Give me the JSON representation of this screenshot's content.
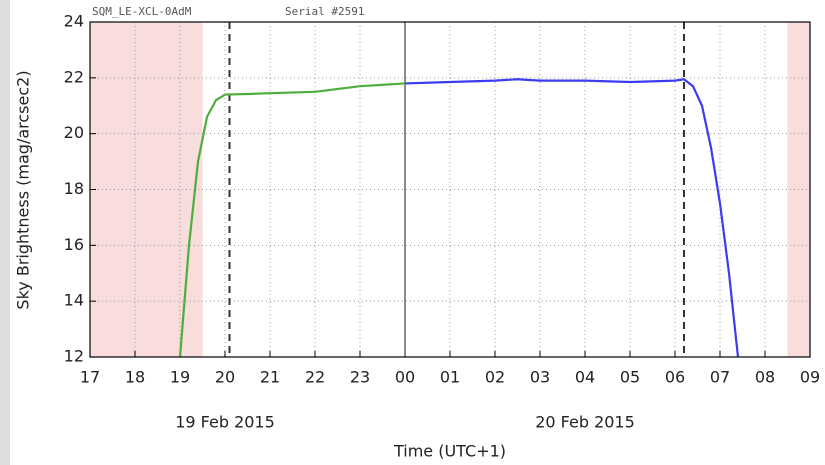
{
  "chart_data": {
    "type": "line",
    "ylabel": "Sky Brightness (mag/arcsec2)",
    "xlabel": "Time (UTC+1)",
    "annotations": [
      "SQM_LE-XCL-0AdM",
      "Serial #2591"
    ],
    "date_labels": [
      "19 Feb 2015",
      "20 Feb 2015"
    ],
    "xlim": [
      17,
      33
    ],
    "ylim": [
      12,
      24
    ],
    "xticks": [
      17,
      18,
      19,
      20,
      21,
      22,
      23,
      {
        "value": 24,
        "label": "00"
      },
      {
        "value": 25,
        "label": "01"
      },
      {
        "value": 26,
        "label": "02"
      },
      {
        "value": 27,
        "label": "03"
      },
      {
        "value": 28,
        "label": "04"
      },
      {
        "value": 29,
        "label": "05"
      },
      {
        "value": 30,
        "label": "06"
      },
      {
        "value": 31,
        "label": "07"
      },
      {
        "value": 32,
        "label": "08"
      },
      {
        "value": 33,
        "label": "09"
      }
    ],
    "yticks": [
      12,
      14,
      16,
      18,
      20,
      22,
      24
    ],
    "grid": true,
    "shaded_regions": [
      [
        17,
        19.5
      ],
      [
        32.5,
        33
      ]
    ],
    "shade_color": "#f9dcdc",
    "dashed_lines": [
      20.1,
      30.2
    ],
    "midnight_line": 24,
    "series": [
      {
        "color": "#4caf3c",
        "x": [
          19.0,
          19.2,
          19.4,
          19.6,
          19.8,
          20.0,
          20.5,
          21,
          22,
          23,
          24
        ],
        "values": [
          12,
          16,
          19,
          20.6,
          21.2,
          21.4,
          21.42,
          21.45,
          21.5,
          21.7,
          21.8
        ]
      },
      {
        "color": "#3b3bf0",
        "x": [
          24,
          25,
          26,
          26.5,
          27,
          28,
          29,
          30,
          30.2,
          30.4,
          30.6,
          30.8,
          31,
          31.2,
          31.4
        ],
        "values": [
          21.8,
          21.85,
          21.9,
          21.95,
          21.9,
          21.9,
          21.85,
          21.9,
          21.95,
          21.7,
          21,
          19.5,
          17.5,
          15,
          12
        ]
      }
    ]
  }
}
